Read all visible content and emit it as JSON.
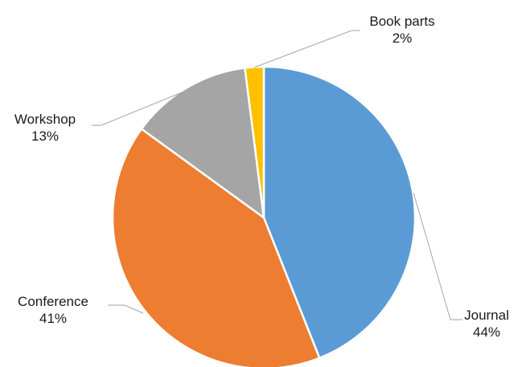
{
  "chart_data": {
    "type": "pie",
    "title": "",
    "slices": [
      {
        "label": "Journal",
        "value": 44,
        "value_label": "44%",
        "color": "#5b9bd5"
      },
      {
        "label": "Conference",
        "value": 41,
        "value_label": "41%",
        "color": "#ed7d31"
      },
      {
        "label": "Workshop",
        "value": 13,
        "value_label": "13%",
        "color": "#a5a5a5"
      },
      {
        "label": "Book parts",
        "value": 2,
        "value_label": "2%",
        "color": "#ffc000"
      }
    ],
    "start": "12 o'clock",
    "direction": "clockwise",
    "legend": "none",
    "labels": "outside with leader lines"
  }
}
